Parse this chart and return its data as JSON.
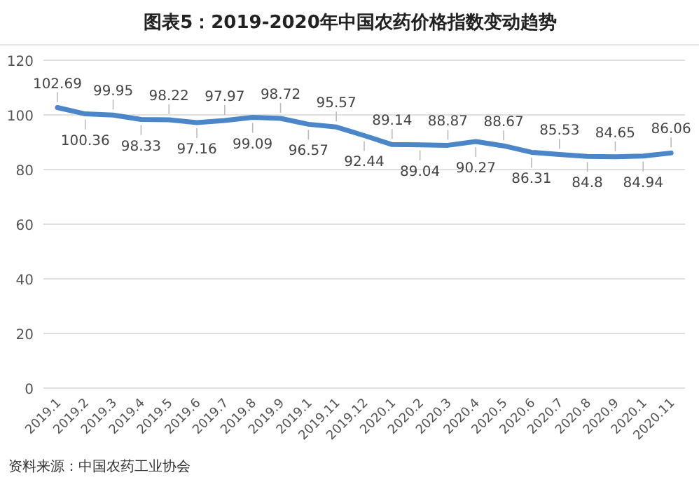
{
  "chart_data": {
    "type": "line",
    "title": "图表5：2019-2020年中国农药价格指数变动趋势",
    "categories": [
      "2019.1",
      "2019.2",
      "2019.3",
      "2019.4",
      "2019.5",
      "2019.6",
      "2019.7",
      "2019.8",
      "2019.9",
      "2019.1",
      "2019.11",
      "2019.12",
      "2020.1",
      "2020.2",
      "2020.3",
      "2020.4",
      "2020.5",
      "2020.6",
      "2020.7",
      "2020.8",
      "2020.9",
      "2020.1",
      "2020.11"
    ],
    "series": [
      {
        "color": "#4a86c8",
        "values": [
          102.69,
          100.36,
          99.95,
          98.33,
          98.22,
          97.16,
          97.97,
          99.09,
          98.72,
          96.57,
          95.57,
          92.44,
          89.14,
          89.04,
          88.87,
          90.27,
          88.67,
          86.31,
          85.53,
          84.8,
          84.65,
          84.94,
          86.06
        ]
      }
    ],
    "ylim": [
      0,
      120
    ],
    "yticks": [
      0,
      20,
      40,
      60,
      80,
      100,
      120
    ],
    "grid": "y",
    "data_labels": true,
    "marker": "none",
    "line_style": "solid",
    "annotations": [
      "资料来源：中国农药工业协会"
    ]
  }
}
